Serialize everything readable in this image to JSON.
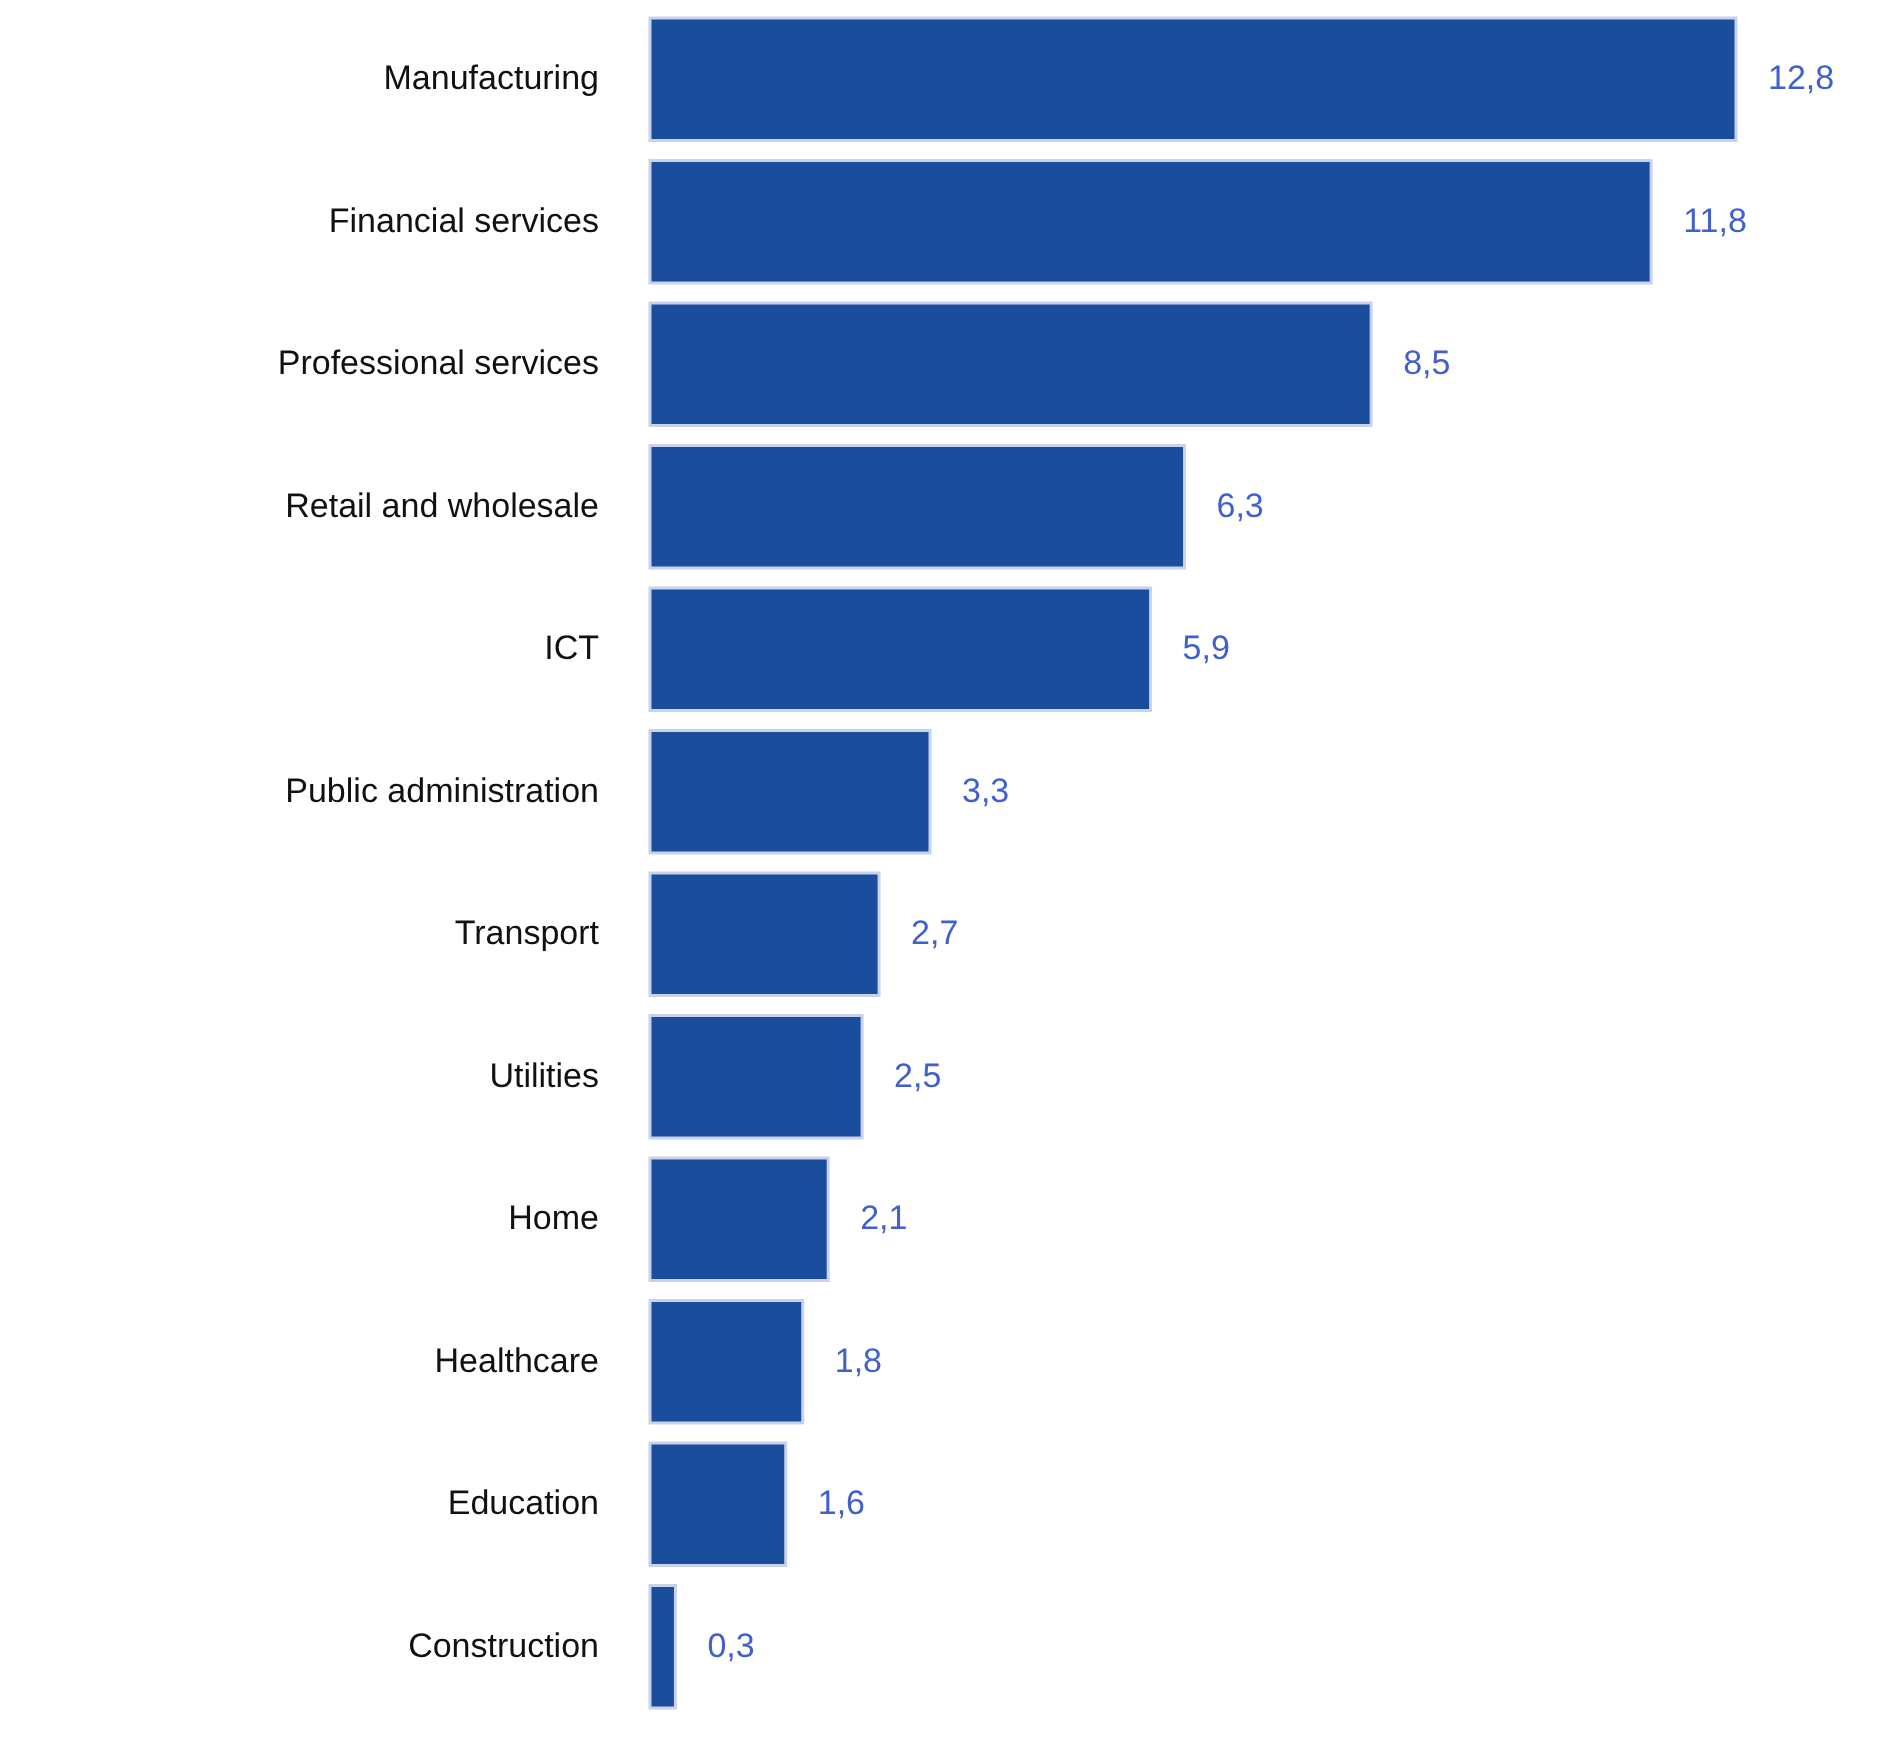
{
  "chart_data": {
    "type": "bar",
    "orientation": "horizontal",
    "categories": [
      "Manufacturing",
      "Financial services",
      "Professional services",
      "Retail and wholesale",
      "ICT",
      "Public administration",
      "Transport",
      "Utilities",
      "Home",
      "Healthcare",
      "Education",
      "Construction"
    ],
    "values": [
      12.8,
      11.8,
      8.5,
      6.3,
      5.9,
      3.3,
      2.7,
      2.5,
      2.1,
      1.8,
      1.6,
      0.3
    ],
    "value_labels": [
      "12,8",
      "11,8",
      "8,5",
      "6,3",
      "5,9",
      "3,3",
      "2,7",
      "2,5",
      "2,1",
      "1,8",
      "1,6",
      "0,3"
    ],
    "color": "#1a4d9c",
    "grid": false
  }
}
